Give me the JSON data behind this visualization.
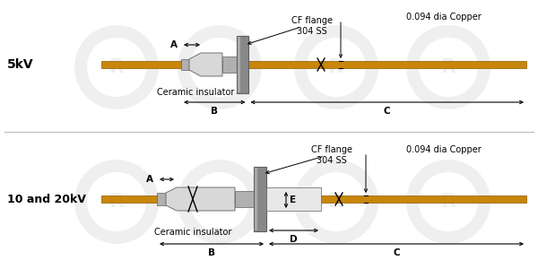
{
  "bg_color": "#ffffff",
  "wire_color": "#C8860A",
  "wire_edge": "#8B5A00",
  "metal_color": "#B0B0B0",
  "metal_dark": "#606060",
  "metal_light": "#D8D8D8",
  "flange_color": "#888888",
  "flange_light": "#AAAAAA",
  "line_color": "#000000",
  "watermark_color": "#EFEFEF",
  "top_label": "5kV",
  "bottom_label": "10 and 20kV",
  "cf_flange_label": "CF flange\n304 SS",
  "ceramic_label": "Ceramic insulator",
  "copper_label": "0.094 dia Copper",
  "dim_A": "A",
  "dim_B": "B",
  "dim_C": "C",
  "dim_D": "D",
  "dim_E": "E"
}
